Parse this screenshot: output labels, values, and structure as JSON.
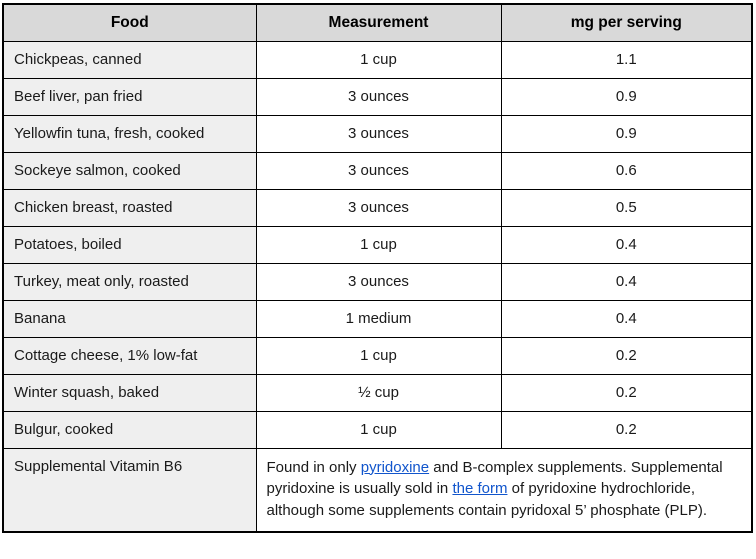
{
  "colors": {
    "header_bg": "#d9d9d9",
    "food_col_bg": "#efefef",
    "border": "#000000",
    "link": "#1155cc"
  },
  "table": {
    "headers": [
      "Food",
      "Measurement",
      "mg per serving"
    ],
    "rows": [
      {
        "food": "Chickpeas, canned",
        "measurement": "1 cup",
        "mg": "1.1"
      },
      {
        "food": "Beef liver, pan fried",
        "measurement": "3 ounces",
        "mg": "0.9"
      },
      {
        "food": "Yellowfin tuna, fresh, cooked",
        "measurement": "3 ounces",
        "mg": "0.9"
      },
      {
        "food": "Sockeye salmon, cooked",
        "measurement": "3 ounces",
        "mg": "0.6"
      },
      {
        "food": "Chicken breast, roasted",
        "measurement": "3 ounces",
        "mg": "0.5"
      },
      {
        "food": "Potatoes, boiled",
        "measurement": "1 cup",
        "mg": "0.4"
      },
      {
        "food": "Turkey, meat only, roasted",
        "measurement": "3 ounces",
        "mg": "0.4"
      },
      {
        "food": "Banana",
        "measurement": "1 medium",
        "mg": "0.4"
      },
      {
        "food": "Cottage cheese, 1% low-fat",
        "measurement": "1 cup",
        "mg": "0.2"
      },
      {
        "food": "Winter squash, baked",
        "measurement": "½ cup",
        "mg": "0.2"
      },
      {
        "food": "Bulgur, cooked",
        "measurement": "1 cup",
        "mg": "0.2"
      }
    ],
    "note_row": {
      "food": "Supplemental Vitamin B6",
      "note_segments": [
        {
          "text": "Found in only "
        },
        {
          "text": "pyridoxine",
          "link": true
        },
        {
          "text": " and B-complex supplements. Supplemental pyridoxine is usually sold in "
        },
        {
          "text": "the form",
          "link": true
        },
        {
          "text": " of pyridoxine hydrochloride, although some supplements contain pyridoxal 5’ phosphate (PLP)."
        }
      ]
    }
  }
}
